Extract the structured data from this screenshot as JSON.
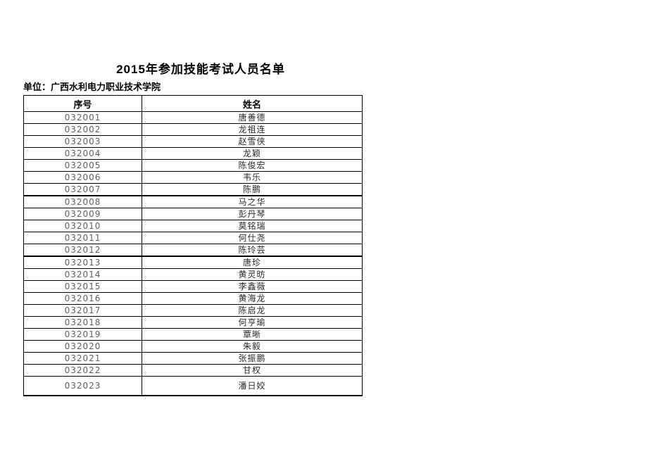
{
  "page": {
    "title": "2015年参加技能考试人员名单",
    "unit_label": "单位：广西水利电力职业技术学院"
  },
  "table": {
    "headers": {
      "serial": "序号",
      "name": "姓名"
    },
    "rows": [
      {
        "serial": "032001",
        "name": "唐善德"
      },
      {
        "serial": "032002",
        "name": "龙祖连"
      },
      {
        "serial": "032003",
        "name": "赵雪侠"
      },
      {
        "serial": "032004",
        "name": "龙颖"
      },
      {
        "serial": "032005",
        "name": "陈俊宏"
      },
      {
        "serial": "032006",
        "name": "韦乐"
      },
      {
        "serial": "032007",
        "name": "陈鹏"
      },
      {
        "serial": "032008",
        "name": "马之华"
      },
      {
        "serial": "032009",
        "name": "彭丹琴"
      },
      {
        "serial": "032010",
        "name": "莫铭瑞"
      },
      {
        "serial": "032011",
        "name": "何仕尧"
      },
      {
        "serial": "032012",
        "name": "陈玲芸"
      },
      {
        "serial": "032013",
        "name": "唐珍"
      },
      {
        "serial": "032014",
        "name": "黄灵昉"
      },
      {
        "serial": "032015",
        "name": "李鑫薇"
      },
      {
        "serial": "032016",
        "name": "黄海龙"
      },
      {
        "serial": "032017",
        "name": "陈启龙"
      },
      {
        "serial": "032018",
        "name": "何亨瑜"
      },
      {
        "serial": "032019",
        "name": "覃晰"
      },
      {
        "serial": "032020",
        "name": "朱毅"
      },
      {
        "serial": "032021",
        "name": "张振鹏"
      },
      {
        "serial": "032022",
        "name": "甘权"
      },
      {
        "serial": "032023",
        "name": "潘日姣"
      }
    ]
  },
  "colors": {
    "border": "#000000",
    "serial_text": "#5f5f5f",
    "name_text": "#2b2b2b",
    "title_text": "#000000",
    "page_background": "#ffffff"
  }
}
